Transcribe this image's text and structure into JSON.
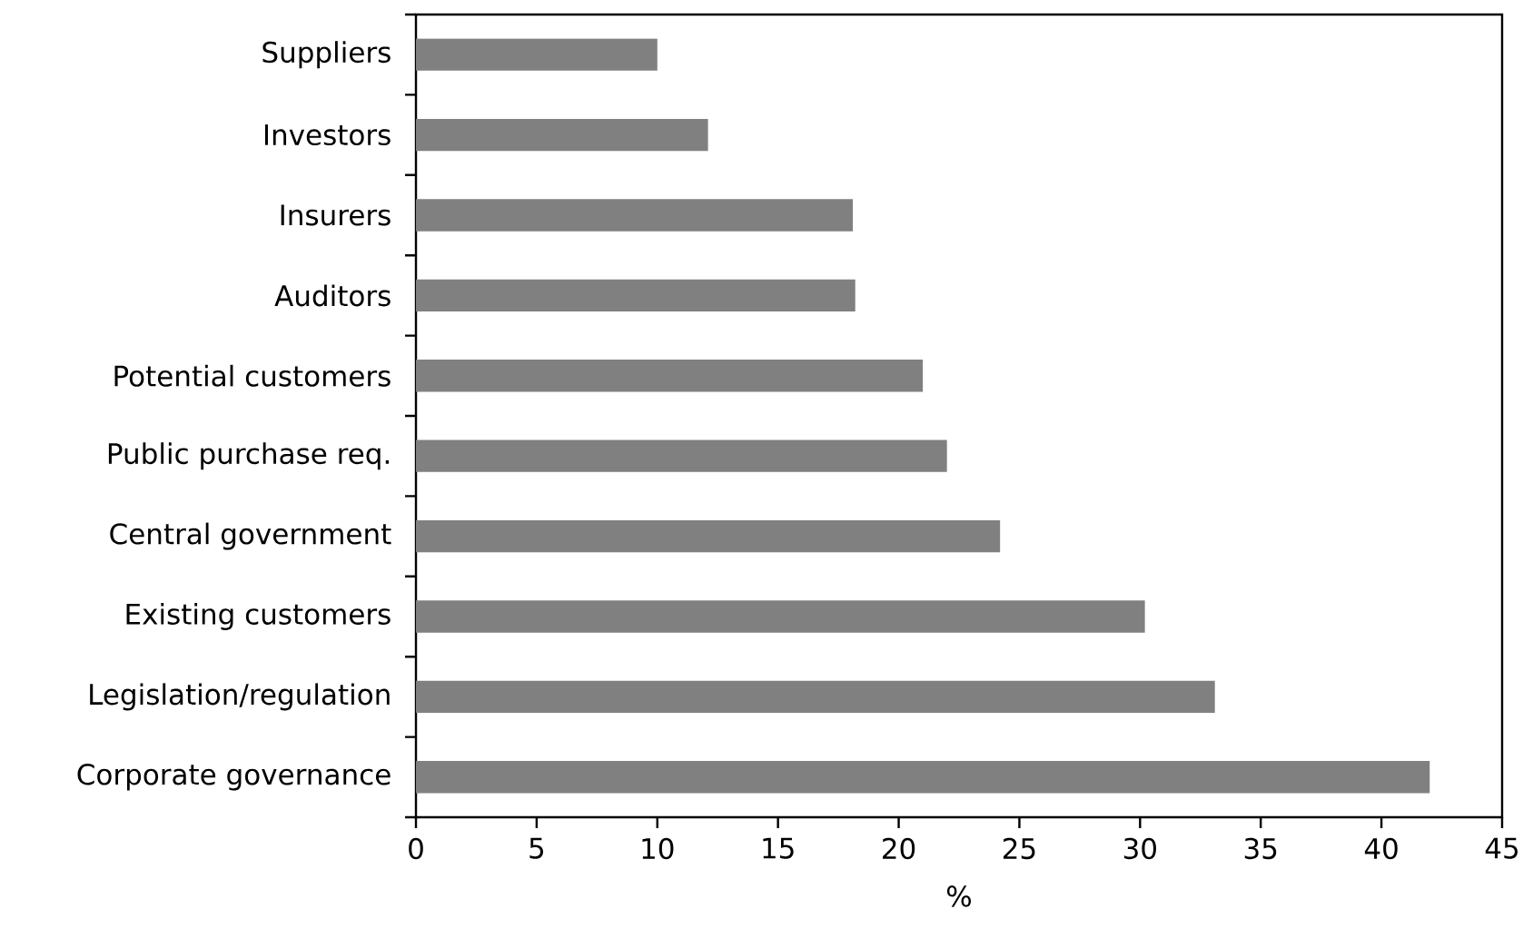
{
  "chart_data": {
    "type": "bar",
    "orientation": "horizontal",
    "xlabel": "%",
    "categories": [
      "Suppliers",
      "Investors",
      "Insurers",
      "Auditors",
      "Potential customers",
      "Public purchase req.",
      "Central government",
      "Existing customers",
      "Legislation/regulation",
      "Corporate governance"
    ],
    "values": [
      10,
      12.1,
      18.1,
      18.2,
      21,
      22,
      24.2,
      30.2,
      33.1,
      42
    ],
    "color": "#808080",
    "xlim": [
      0,
      45
    ],
    "xticks": [
      0,
      5,
      10,
      15,
      20,
      25,
      30,
      35,
      40,
      45
    ],
    "grid": false
  }
}
